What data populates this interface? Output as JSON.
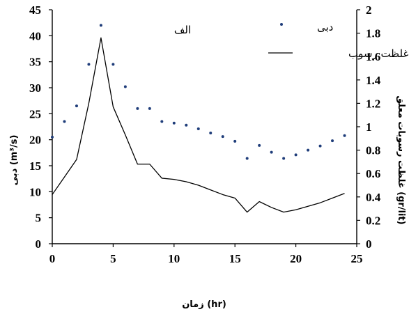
{
  "chart_data": {
    "type": "line",
    "title": "الف",
    "xlabel": "زمان (hr)",
    "ylabel": "دبی (m³/s)",
    "y2label": "غلظت رسوبات معلق (gr/lit)",
    "xlim": [
      0,
      25
    ],
    "ylim": [
      0,
      45
    ],
    "y2lim": [
      0,
      2
    ],
    "x_ticks": [
      "0",
      "5",
      "10",
      "15",
      "20",
      "25"
    ],
    "y_ticks": [
      "0",
      "5",
      "10",
      "15",
      "20",
      "25",
      "30",
      "35",
      "40",
      "45"
    ],
    "y2_ticks": [
      "0",
      "0.2",
      "0.4",
      "0.6",
      "0.8",
      "1",
      "1.2",
      "1.4",
      "1.6",
      "1.8",
      "2"
    ],
    "grid": false,
    "legend_position": "top-right",
    "series": [
      {
        "name": "دبی",
        "type": "scatter",
        "axis": "left",
        "color": "#1f3d7a",
        "x": [
          0,
          1,
          2,
          3,
          4,
          5,
          6,
          7,
          8,
          9,
          10,
          11,
          12,
          13,
          14,
          15,
          16,
          17,
          18,
          19,
          20,
          21,
          22,
          23,
          24
        ],
        "y": [
          20.5,
          23.5,
          26.5,
          34.5,
          42,
          34.5,
          30.2,
          26,
          26,
          23.5,
          23.2,
          22.8,
          22.1,
          21.3,
          20.6,
          19.7,
          16.4,
          18.9,
          17.6,
          16.4,
          17.1,
          18,
          18.8,
          19.8,
          20.8
        ]
      },
      {
        "name": "غلظت رسوب",
        "type": "line",
        "axis": "right",
        "color": "#000000",
        "x": [
          0,
          1,
          2,
          3,
          4,
          5,
          6,
          7,
          8,
          9,
          10,
          11,
          12,
          13,
          14,
          15,
          16,
          17,
          18,
          19,
          20,
          21,
          22,
          23,
          24
        ],
        "y": [
          0.42,
          0.57,
          0.72,
          1.2,
          1.76,
          1.17,
          0.93,
          0.68,
          0.68,
          0.56,
          0.55,
          0.53,
          0.5,
          0.46,
          0.42,
          0.39,
          0.27,
          0.36,
          0.31,
          0.27,
          0.29,
          0.32,
          0.35,
          0.39,
          0.43
        ]
      }
    ]
  }
}
